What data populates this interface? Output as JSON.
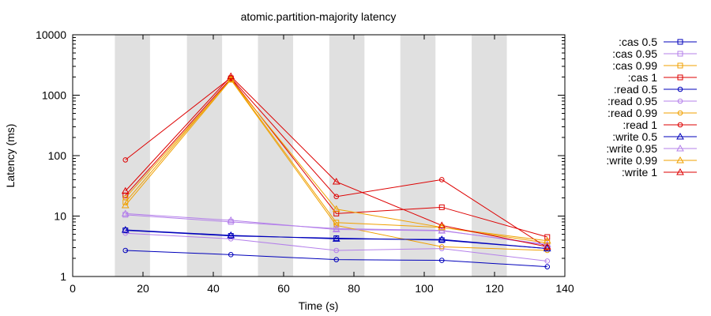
{
  "chart_data": {
    "type": "line",
    "title": "atomic.partition-majority latency",
    "xlabel": "Time (s)",
    "ylabel": "Latency (ms)",
    "y_scale": "log",
    "xlim": [
      0,
      140
    ],
    "ylim": [
      1,
      10000
    ],
    "x_ticks": [
      0,
      20,
      40,
      60,
      80,
      100,
      120,
      140
    ],
    "y_ticks": [
      1,
      10,
      100,
      1000,
      10000
    ],
    "x_tick_labels": [
      "0",
      "20",
      "40",
      "60",
      "80",
      "100",
      "120",
      "140"
    ],
    "y_tick_labels": [
      "1",
      "10",
      "100",
      "1000",
      "10000"
    ],
    "nemesis_bands": [
      [
        12,
        22
      ],
      [
        32.5,
        42.5
      ],
      [
        52.7,
        62.7
      ],
      [
        73,
        83
      ],
      [
        93.2,
        103.2
      ],
      [
        113.5,
        123.5
      ]
    ],
    "legend_position": "right",
    "series": [
      {
        "name": ":cas 0.5",
        "color": "#0000bb",
        "marker": "square",
        "x": [
          15,
          45,
          75,
          105,
          135
        ],
        "y": [
          5.8,
          4.7,
          4.3,
          4.0,
          2.9
        ]
      },
      {
        "name": ":cas 0.95",
        "color": "#b480ea",
        "marker": "square",
        "x": [
          15,
          45,
          75,
          105,
          135
        ],
        "y": [
          10.5,
          8.0,
          6.2,
          5.8,
          3.3
        ]
      },
      {
        "name": ":cas 0.99",
        "color": "#f0a000",
        "marker": "square",
        "x": [
          15,
          45,
          75,
          105,
          135
        ],
        "y": [
          17,
          1850,
          7.8,
          6.5,
          3.6
        ]
      },
      {
        "name": ":cas 1",
        "color": "#dd0000",
        "marker": "square",
        "x": [
          15,
          45,
          75,
          105,
          135
        ],
        "y": [
          22,
          1900,
          11.0,
          14.0,
          4.5
        ]
      },
      {
        "name": ":read 0.5",
        "color": "#0000bb",
        "marker": "circle",
        "x": [
          15,
          45,
          75,
          105,
          135
        ],
        "y": [
          2.7,
          2.3,
          1.9,
          1.85,
          1.45
        ]
      },
      {
        "name": ":read 0.95",
        "color": "#b480ea",
        "marker": "circle",
        "x": [
          15,
          45,
          75,
          105,
          135
        ],
        "y": [
          5.2,
          4.2,
          2.7,
          2.9,
          1.8
        ]
      },
      {
        "name": ":read 0.99",
        "color": "#f0a000",
        "marker": "circle",
        "x": [
          15,
          45,
          75,
          105,
          135
        ],
        "y": [
          20,
          1800,
          7.0,
          3.1,
          2.7
        ]
      },
      {
        "name": ":read 1",
        "color": "#dd0000",
        "marker": "circle",
        "x": [
          15,
          45,
          75,
          105,
          135
        ],
        "y": [
          85,
          1950,
          21,
          40,
          3.0
        ]
      },
      {
        "name": ":write 0.5",
        "color": "#0000bb",
        "marker": "triangle",
        "x": [
          15,
          45,
          75,
          105,
          135
        ],
        "y": [
          5.9,
          4.8,
          4.2,
          4.1,
          2.9
        ]
      },
      {
        "name": ":write 0.95",
        "color": "#b480ea",
        "marker": "triangle",
        "x": [
          15,
          45,
          75,
          105,
          135
        ],
        "y": [
          11,
          8.5,
          6.0,
          5.7,
          3.4
        ]
      },
      {
        "name": ":write 0.99",
        "color": "#f0a000",
        "marker": "triangle",
        "x": [
          15,
          45,
          75,
          105,
          135
        ],
        "y": [
          15,
          1800,
          13,
          6.5,
          3.9
        ]
      },
      {
        "name": ":write 1",
        "color": "#dd0000",
        "marker": "triangle",
        "x": [
          15,
          45,
          75,
          105,
          135
        ],
        "y": [
          26,
          2050,
          37,
          7.0,
          3.1
        ]
      }
    ]
  }
}
